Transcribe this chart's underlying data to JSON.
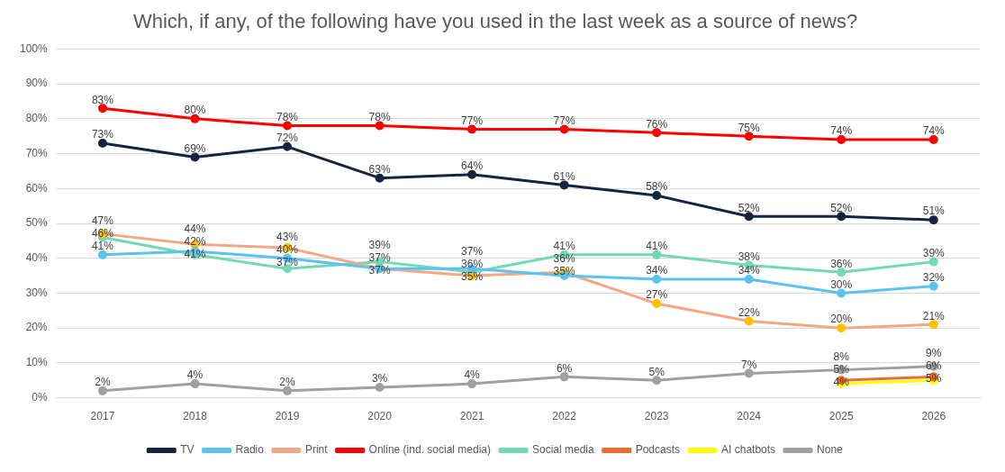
{
  "chart_data": {
    "type": "line",
    "title": "Which, if any, of the following have you used in the last week as a source of news?",
    "categories": [
      "2017",
      "2018",
      "2019",
      "2020",
      "2021",
      "2022",
      "2023",
      "2024",
      "2025",
      "2026"
    ],
    "ylim": [
      0,
      100
    ],
    "yticks": [
      {
        "value": 0,
        "label": "0%"
      },
      {
        "value": 10,
        "label": "10%"
      },
      {
        "value": 20,
        "label": "20%"
      },
      {
        "value": 30,
        "label": "30%"
      },
      {
        "value": 40,
        "label": "40%"
      },
      {
        "value": 50,
        "label": "50%"
      },
      {
        "value": 60,
        "label": "60%"
      },
      {
        "value": 70,
        "label": "70%"
      },
      {
        "value": 80,
        "label": "80%"
      },
      {
        "value": 90,
        "label": "90%"
      },
      {
        "value": 100,
        "label": "100%"
      }
    ],
    "grid": "y",
    "legend": "bottom",
    "marker": "circle",
    "line_style": "solid",
    "series": [
      {
        "name": "TV",
        "color": "#14253f",
        "values": [
          73,
          69,
          72,
          63,
          64,
          61,
          58,
          52,
          52,
          51
        ],
        "value_labels": [
          "73%",
          "69%",
          "72%",
          "63%",
          "64%",
          "61%",
          "58%",
          "52%",
          "52%",
          "51%"
        ]
      },
      {
        "name": "Radio",
        "color": "#5bc3f0",
        "values": [
          41,
          42,
          40,
          37,
          37,
          35,
          34,
          34,
          30,
          32
        ],
        "value_labels": [
          "41%",
          "42%",
          "40%",
          "37%",
          "37%",
          "35%",
          "34%",
          "34%",
          "30%",
          "32%"
        ]
      },
      {
        "name": "Print",
        "color": "#f2a983",
        "colors": [
          "#ffc000",
          "#ffc000",
          "#ffc000",
          "#ffc000",
          "#ffc000",
          "#ffc000",
          "#ffc000",
          "#ffc000",
          "#ffc000",
          "#ffc000"
        ],
        "values": [
          47,
          44,
          43,
          37,
          35,
          36,
          27,
          22,
          20,
          21
        ],
        "value_labels": [
          "47%",
          "44%",
          "43%",
          "37%",
          "35%",
          "36%",
          "27%",
          "22%",
          "20%",
          "21%"
        ]
      },
      {
        "name": "Online (ind. social media)",
        "color": "#ff0000",
        "values": [
          83,
          80,
          78,
          78,
          77,
          77,
          76,
          75,
          74,
          74
        ],
        "value_labels": [
          "83%",
          "80%",
          "78%",
          "78%",
          "77%",
          "77%",
          "76%",
          "75%",
          "74%",
          "74%"
        ]
      },
      {
        "name": "Social media",
        "color": "#72d9b4",
        "values": [
          46,
          41,
          37,
          39,
          36,
          41,
          41,
          38,
          36,
          39
        ],
        "value_labels": [
          "46%",
          "41%",
          "37%",
          "39%",
          "36%",
          "41%",
          "41%",
          "38%",
          "36%",
          "39%"
        ]
      },
      {
        "name": "Podcasts",
        "color": "#ee6b2d",
        "values": [
          null,
          null,
          null,
          null,
          null,
          null,
          null,
          null,
          5,
          6
        ],
        "value_labels": [
          null,
          null,
          null,
          null,
          null,
          null,
          null,
          null,
          "5%",
          "6%"
        ]
      },
      {
        "name": "AI chatbots",
        "color": "#ffff00",
        "values": [
          null,
          null,
          null,
          null,
          null,
          null,
          null,
          null,
          4,
          5
        ],
        "value_labels": [
          null,
          null,
          null,
          null,
          null,
          null,
          null,
          null,
          "4%",
          "5%"
        ]
      },
      {
        "name": "None",
        "color": "#a0a0a0",
        "values": [
          2,
          4,
          2,
          3,
          4,
          6,
          5,
          7,
          8,
          9
        ],
        "value_labels": [
          "2%",
          "4%",
          "2%",
          "3%",
          "4%",
          "6%",
          "5%",
          "7%",
          "8%",
          "9%"
        ]
      }
    ]
  }
}
